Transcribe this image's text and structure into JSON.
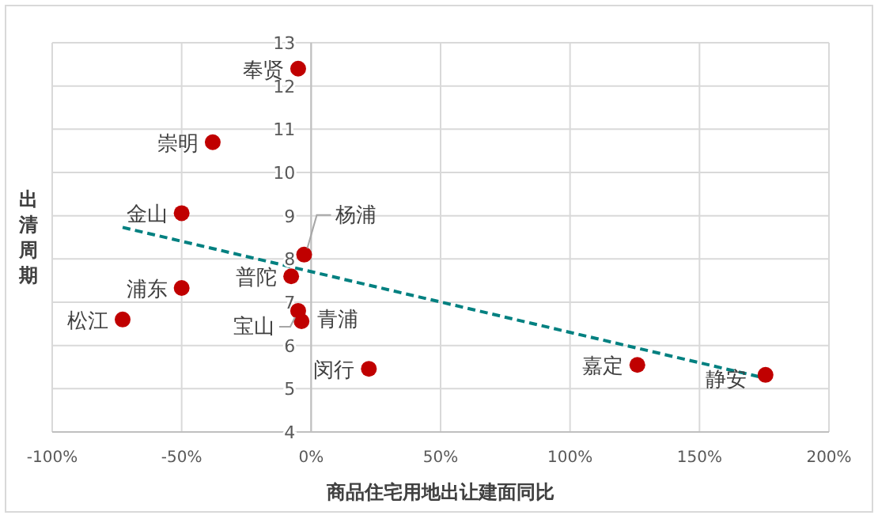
{
  "chart_data": {
    "type": "scatter",
    "xlabel": "商品住宅用地出让建面同比",
    "ylabel": "出清周期",
    "series": [
      {
        "color": "#c00000",
        "marker": "circle",
        "x": [
          -5,
          -38,
          -50,
          -2.7,
          -7.7,
          -50,
          -5,
          -3.7,
          -72.8,
          22.3,
          126,
          175.5
        ],
        "values": [
          12.4,
          10.7,
          9.06,
          8.1,
          7.6,
          7.33,
          6.8,
          6.56,
          6.6,
          5.46,
          5.55,
          5.32
        ]
      },
      {
        "type": "line",
        "color": "#008080",
        "line_style": "dashed",
        "marker": "none",
        "x": [
          -72.8,
          175
        ],
        "values": [
          8.73,
          5.25
        ]
      }
    ],
    "annotations": [
      {
        "text": "奉贤",
        "x": -5,
        "y": 12.4
      },
      {
        "text": "崇明",
        "x": -38,
        "y": 10.7
      },
      {
        "text": "金山",
        "x": -50,
        "y": 9.06
      },
      {
        "text": "杨浦",
        "x": -2.7,
        "y": 8.1
      },
      {
        "text": "普陀",
        "x": -7.7,
        "y": 7.6
      },
      {
        "text": "浦东",
        "x": -50,
        "y": 7.33
      },
      {
        "text": "宝山",
        "x": -5,
        "y": 6.8
      },
      {
        "text": "青浦",
        "x": -3.7,
        "y": 6.56
      },
      {
        "text": "松江",
        "x": -72.8,
        "y": 6.6
      },
      {
        "text": "闵行",
        "x": 22.3,
        "y": 5.46
      },
      {
        "text": "嘉定",
        "x": 126,
        "y": 5.55
      },
      {
        "text": "静安",
        "x": 175.5,
        "y": 5.32
      }
    ],
    "xlim": [
      -100,
      200
    ],
    "xticks": [
      {
        "value": -100,
        "label": "-100%"
      },
      {
        "value": -50,
        "label": "-50%"
      },
      {
        "value": 0,
        "label": "0%"
      },
      {
        "value": 50,
        "label": "50%"
      },
      {
        "value": 100,
        "label": "100%"
      },
      {
        "value": 150,
        "label": "150%"
      },
      {
        "value": 200,
        "label": "200%"
      }
    ],
    "ylim": [
      4,
      13
    ],
    "yticks": [
      4,
      5,
      6,
      7,
      8,
      9,
      10,
      11,
      12,
      13
    ],
    "grid": true
  }
}
